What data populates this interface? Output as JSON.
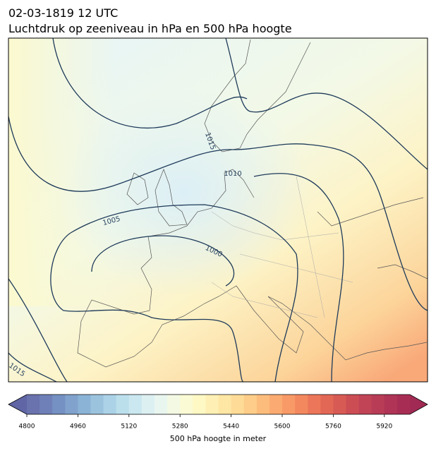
{
  "header": {
    "title_line1": "02-03-1819 12 UTC",
    "title_line2": "Luchtdruk op zeeniveau in hPa en 500 hPa hoogte"
  },
  "isobar_labels": [
    1015,
    1010,
    1005,
    1000,
    1015
  ],
  "colorbar": {
    "label": "500 hPa hoogte in meter",
    "lim": [
      4800,
      6000
    ],
    "ticks": [
      4800,
      4960,
      5120,
      5280,
      5440,
      5600,
      5760,
      5920
    ],
    "under_color": "#5f65a5",
    "over_color": "#a02a53",
    "colors": [
      "#6a73ad",
      "#6f80b8",
      "#7590c2",
      "#80a2cc",
      "#8bb3d6",
      "#9cc3de",
      "#abd2e6",
      "#bcdfec",
      "#cbe8f1",
      "#dcf0f2",
      "#e9f6ef",
      "#f3f9e3",
      "#fafbd4",
      "#fef8c4",
      "#fef0b5",
      "#fee6a5",
      "#fedb97",
      "#fdcd89",
      "#fcbd7c",
      "#fbab71",
      "#f89a67",
      "#f3885f",
      "#ec7659",
      "#e36755",
      "#d85a54",
      "#cc4e54",
      "#c14456",
      "#b83c56",
      "#af3455",
      "#a82d54"
    ]
  }
}
